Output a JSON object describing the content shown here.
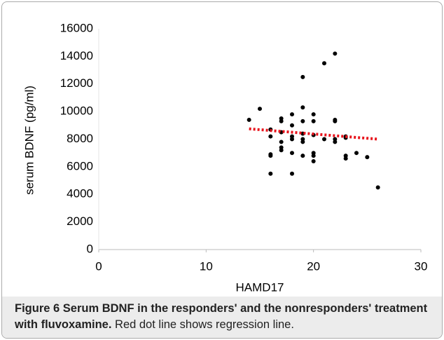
{
  "chart_data": {
    "type": "scatter",
    "x_label": "HAMD17",
    "y_label": "serum BDNF (pg/ml)",
    "xlim": [
      0,
      30
    ],
    "xticks": [
      0,
      10,
      20,
      30
    ],
    "ylim": [
      0,
      16000
    ],
    "yticks": [
      0,
      2000,
      4000,
      6000,
      8000,
      10000,
      12000,
      14000,
      16000
    ],
    "grid": false,
    "series": [
      {
        "color": "#000000",
        "x": [
          14,
          15,
          16,
          16,
          16,
          16,
          16,
          17,
          17,
          17,
          17,
          17,
          17,
          18,
          18,
          18,
          18,
          18,
          18,
          19,
          19,
          19,
          19,
          19,
          19,
          19,
          20,
          20,
          20,
          20,
          20,
          20,
          21,
          21,
          22,
          22,
          22,
          22,
          22,
          23,
          23,
          23,
          23,
          24,
          25,
          26
        ],
        "values": [
          9400,
          10200,
          8700,
          8200,
          6900,
          6800,
          5500,
          9500,
          9300,
          8500,
          7800,
          7400,
          7200,
          9800,
          9000,
          8200,
          8000,
          7000,
          5500,
          12500,
          10300,
          9300,
          8400,
          8000,
          7800,
          6800,
          9800,
          9300,
          8300,
          7000,
          6800,
          6400,
          13500,
          8000,
          14200,
          9400,
          9300,
          8000,
          7800,
          8200,
          8100,
          6800,
          6600,
          7000,
          6700,
          4500
        ]
      }
    ],
    "trendline": {
      "color": "#e8141c",
      "x": [
        14,
        26
      ],
      "values": [
        8750,
        8000
      ]
    }
  },
  "caption": {
    "label": "Figure 6",
    "title": "Serum BDNF in the responders' and the nonresponders' treatment with fluvoxamine.",
    "note": "Red dot line shows regression line."
  }
}
